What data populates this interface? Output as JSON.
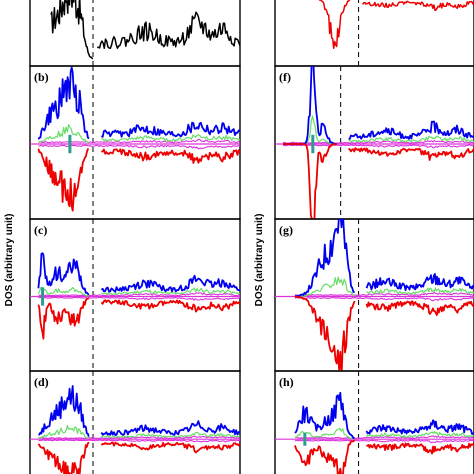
{
  "figure": {
    "ylabel_left": "DOS (arbitrary unit)",
    "ylabel_right": "DOS (arbitrary unit)"
  },
  "colors": {
    "total": "#000000",
    "spin_up": "#0000ee",
    "spin_down": "#ee0000",
    "green": "#66dd66",
    "magenta": "#dd33dd",
    "teal": "#2a9d8f"
  },
  "chart_data": [
    {
      "id": "a",
      "label": "",
      "type": "line",
      "style": "total",
      "fermi_x": 0.3
    },
    {
      "id": "b",
      "label": "(b)",
      "type": "line",
      "style": "spin",
      "fermi_x": 0.3
    },
    {
      "id": "c",
      "label": "(c)",
      "type": "line",
      "style": "spin",
      "fermi_x": 0.3
    },
    {
      "id": "d",
      "label": "(d)",
      "type": "line",
      "style": "spin",
      "fermi_x": 0.3
    },
    {
      "id": "e",
      "label": "",
      "type": "line",
      "style": "down_only",
      "fermi_x": 0.42
    },
    {
      "id": "f",
      "label": "(f)",
      "type": "line",
      "style": "spin",
      "fermi_x": 0.33
    },
    {
      "id": "g",
      "label": "(g)",
      "type": "line",
      "style": "spin",
      "fermi_x": 0.42
    },
    {
      "id": "h",
      "label": "(h)",
      "type": "line",
      "style": "spin",
      "fermi_x": 0.42
    }
  ]
}
